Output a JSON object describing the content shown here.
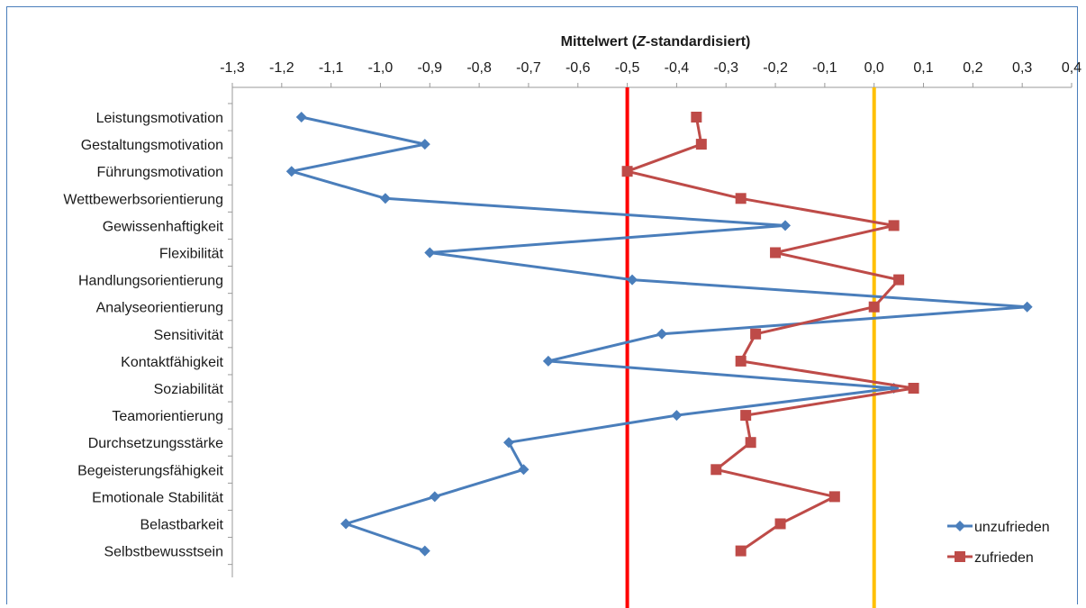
{
  "chart_data": {
    "type": "line",
    "title": "",
    "xlabel_parts": [
      "Mittelwert (",
      "Z",
      "-standardisiert)"
    ],
    "xlim": [
      -1.3,
      0.4
    ],
    "x_ticks": [
      -1.3,
      -1.2,
      -1.1,
      -1.0,
      -0.9,
      -0.8,
      -0.7,
      -0.6,
      -0.5,
      -0.4,
      -0.3,
      -0.2,
      -0.1,
      0.0,
      0.1,
      0.2,
      0.3,
      0.4
    ],
    "x_tick_labels": [
      "-1,3",
      "-1,2",
      "-1,1",
      "-1,0",
      "-0,9",
      "-0,8",
      "-0,7",
      "-0,6",
      "-0,5",
      "-0,4",
      "-0,3",
      "-0,2",
      "-0,1",
      "0,0",
      "0,1",
      "0,2",
      "0,3",
      "0,4"
    ],
    "categories": [
      "Leistungsmotivation",
      "Gestaltungsmotivation",
      "Führungsmotivation",
      "Wettbewerbsorientierung",
      "Gewissenhaftigkeit",
      "Flexibilität",
      "Handlungsorientierung",
      "Analyseorientierung",
      "Sensitivität",
      "Kontaktfähigkeit",
      "Soziabilität",
      "Teamorientierung",
      "Durchsetzungsstärke",
      "Begeisterungsfähigkeit",
      "Emotionale Stabilität",
      "Belastbarkeit",
      "Selbstbewusstsein"
    ],
    "series": [
      {
        "name": "unzufrieden",
        "color": "#4a7ebb",
        "marker": "diamond",
        "values": [
          -1.16,
          -0.91,
          -1.18,
          -0.99,
          -0.18,
          -0.9,
          -0.49,
          0.31,
          -0.43,
          -0.66,
          0.04,
          -0.4,
          -0.74,
          -0.71,
          -0.89,
          -1.07,
          -0.91
        ]
      },
      {
        "name": "zufrieden",
        "color": "#be4b48",
        "marker": "square",
        "values": [
          -0.36,
          -0.35,
          -0.5,
          -0.27,
          0.04,
          -0.2,
          0.05,
          0.0,
          -0.24,
          -0.27,
          0.08,
          -0.26,
          -0.25,
          -0.32,
          -0.08,
          -0.19,
          -0.27
        ]
      }
    ],
    "reference_lines": [
      {
        "x": -0.5,
        "color": "#ff0000"
      },
      {
        "x": 0.0,
        "color": "#ffc000"
      }
    ],
    "grid": false,
    "legend_position": "bottom-right"
  }
}
